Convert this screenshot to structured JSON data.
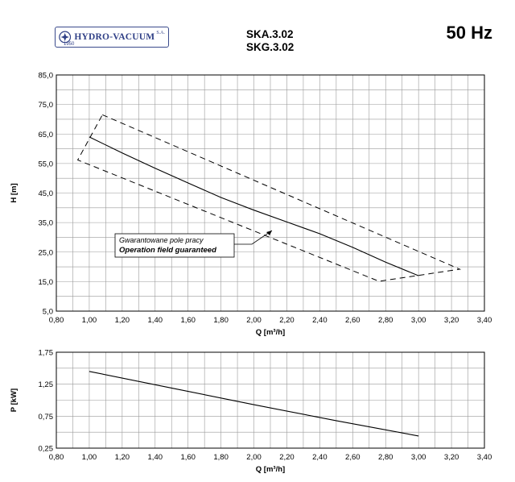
{
  "header": {
    "logo_text": "HYDRO-VACUUM",
    "logo_suffix": "S.A.",
    "logo_year": "1950",
    "model_1": "SKA.3.02",
    "model_2": "SKG.3.02",
    "frequency": "50 Hz"
  },
  "annotation": {
    "line_1": "Gwarantowane pole pracy",
    "line_2": "Operation field guaranteed"
  },
  "chart_data": [
    {
      "type": "line",
      "xlabel": "Q [m³/h]",
      "ylabel": "H [m]",
      "xlim": [
        0.8,
        3.4
      ],
      "ylim": [
        5.0,
        85.0
      ],
      "x_ticks": [
        "0,80",
        "1,00",
        "1,20",
        "1,40",
        "1,60",
        "1,80",
        "2,00",
        "2,20",
        "2,40",
        "2,60",
        "2,80",
        "3,00",
        "3,20",
        "3,40"
      ],
      "y_ticks": [
        "5,0",
        "15,0",
        "25,0",
        "35,0",
        "45,0",
        "55,0",
        "65,0",
        "75,0",
        "85,0"
      ],
      "grid": true,
      "series": [
        {
          "style": "solid",
          "x": [
            1.0,
            1.2,
            1.4,
            1.6,
            1.8,
            2.0,
            2.2,
            2.4,
            2.6,
            2.8,
            3.0
          ],
          "y": [
            64.0,
            58.6,
            53.4,
            48.4,
            43.5,
            39.2,
            35.2,
            31.2,
            26.6,
            21.6,
            17.0
          ]
        },
        {
          "style": "dashed",
          "x": [
            1.08,
            3.25,
            2.76,
            0.93,
            1.08
          ],
          "y": [
            71.5,
            19.2,
            15.1,
            56.2,
            71.5
          ]
        }
      ]
    },
    {
      "type": "line",
      "xlabel": "Q [m³/h]",
      "ylabel": "P [kW]",
      "xlim": [
        0.8,
        3.4
      ],
      "ylim": [
        0.25,
        1.75
      ],
      "x_ticks": [
        "0,80",
        "1,00",
        "1,20",
        "1,40",
        "1,60",
        "1,80",
        "2,00",
        "2,20",
        "2,40",
        "2,60",
        "2,80",
        "3,00",
        "3,20",
        "3,40"
      ],
      "y_ticks": [
        "0,25",
        "0,75",
        "1,25",
        "1,75"
      ],
      "grid": true,
      "series": [
        {
          "style": "solid",
          "x": [
            1.0,
            1.5,
            2.0,
            2.5,
            3.0
          ],
          "y": [
            1.45,
            1.19,
            0.93,
            0.68,
            0.44
          ]
        }
      ]
    }
  ],
  "colors": {
    "logo": "#2f3f86",
    "grid": "#9a9a9a",
    "line": "#000000"
  }
}
